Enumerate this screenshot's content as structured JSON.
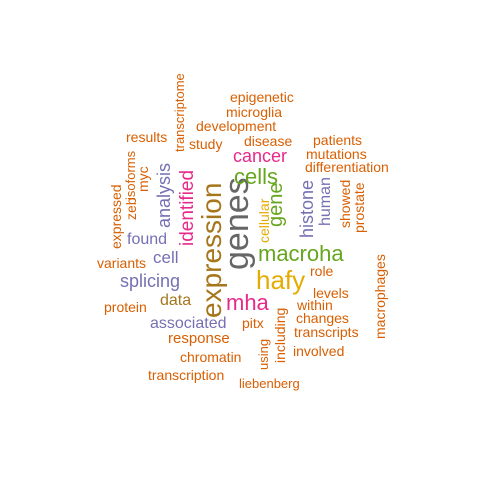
{
  "colors": {
    "orange": "#D95F02",
    "purple": "#7570B3",
    "magenta": "#E7298A",
    "green": "#66A61E",
    "gold": "#E6AB02",
    "brown": "#A6761D",
    "gray": "#666666"
  },
  "words": [
    {
      "text": "genes",
      "color": "gray"
    },
    {
      "text": "expression",
      "color": "brown"
    },
    {
      "text": "hafy",
      "color": "gold"
    },
    {
      "text": "macroha",
      "color": "green"
    },
    {
      "text": "cells",
      "color": "green"
    },
    {
      "text": "mha",
      "color": "magenta"
    },
    {
      "text": "identified",
      "color": "magenta"
    },
    {
      "text": "gene",
      "color": "green"
    },
    {
      "text": "histone",
      "color": "purple"
    },
    {
      "text": "analysis",
      "color": "purple"
    },
    {
      "text": "cancer",
      "color": "magenta"
    },
    {
      "text": "splicing",
      "color": "purple"
    },
    {
      "text": "associated",
      "color": "purple"
    },
    {
      "text": "cell",
      "color": "purple"
    },
    {
      "text": "found",
      "color": "purple"
    },
    {
      "text": "human",
      "color": "purple"
    },
    {
      "text": "data",
      "color": "brown"
    },
    {
      "text": "cellular",
      "color": "gold"
    },
    {
      "text": "epigenetic",
      "color": "orange"
    },
    {
      "text": "microglia",
      "color": "orange"
    },
    {
      "text": "development",
      "color": "orange"
    },
    {
      "text": "transcriptome",
      "color": "orange"
    },
    {
      "text": "results",
      "color": "orange"
    },
    {
      "text": "study",
      "color": "orange"
    },
    {
      "text": "disease",
      "color": "orange"
    },
    {
      "text": "patients",
      "color": "orange"
    },
    {
      "text": "mutations",
      "color": "orange"
    },
    {
      "text": "differentiation",
      "color": "orange"
    },
    {
      "text": "isoforms",
      "color": "orange"
    },
    {
      "text": "myc",
      "color": "orange"
    },
    {
      "text": "zeb",
      "color": "orange"
    },
    {
      "text": "expressed",
      "color": "orange"
    },
    {
      "text": "showed",
      "color": "orange"
    },
    {
      "text": "prostate",
      "color": "orange"
    },
    {
      "text": "variants",
      "color": "orange"
    },
    {
      "text": "role",
      "color": "orange"
    },
    {
      "text": "levels",
      "color": "orange"
    },
    {
      "text": "within",
      "color": "orange"
    },
    {
      "text": "changes",
      "color": "orange"
    },
    {
      "text": "protein",
      "color": "orange"
    },
    {
      "text": "pitx",
      "color": "orange"
    },
    {
      "text": "including",
      "color": "orange"
    },
    {
      "text": "transcripts",
      "color": "orange"
    },
    {
      "text": "macrophages",
      "color": "orange"
    },
    {
      "text": "response",
      "color": "orange"
    },
    {
      "text": "using",
      "color": "orange"
    },
    {
      "text": "involved",
      "color": "orange"
    },
    {
      "text": "chromatin",
      "color": "orange"
    },
    {
      "text": "transcription",
      "color": "orange"
    },
    {
      "text": "liebenberg",
      "color": "orange"
    }
  ]
}
